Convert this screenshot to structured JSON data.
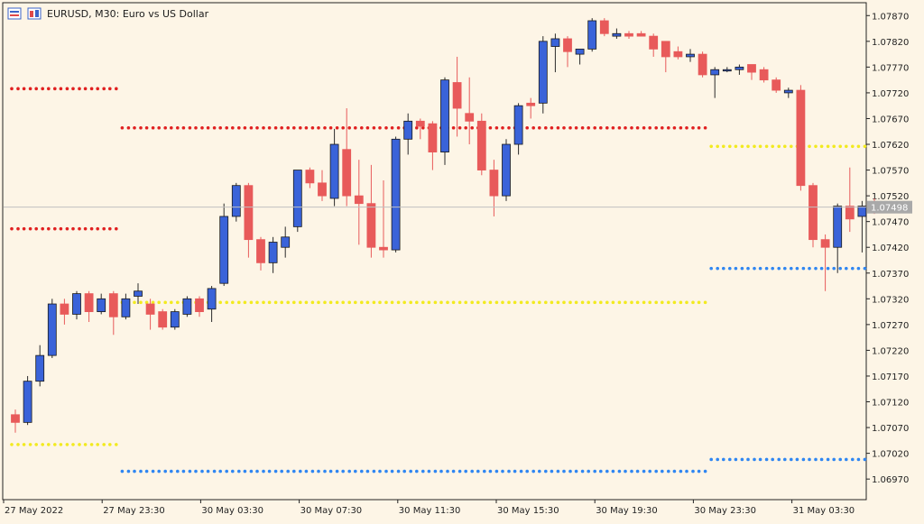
{
  "window": {
    "title": "EURUSD, M30:  Euro vs US Dollar",
    "icons": [
      "chart-window-icon",
      "chart-properties-icon"
    ]
  },
  "colors": {
    "background": "#fdf5e6",
    "bull": "#3a63d9",
    "bear": "#e85a5a",
    "wick": "#2a2a2a",
    "level_red": "#e02020",
    "level_yellow": "#f2ea1f",
    "level_blue": "#2f86f2",
    "current_price_line": "#c0c0c0",
    "current_price_box": "#a9a9a9"
  },
  "chart_data": {
    "type": "candlestick",
    "symbol": "EURUSD",
    "timeframe": "M30",
    "ylim": [
      1.0693,
      1.07895
    ],
    "yticks": [
      "1.07870",
      "1.07820",
      "1.07770",
      "1.07720",
      "1.07670",
      "1.07620",
      "1.07570",
      "1.07520",
      "1.07470",
      "1.07420",
      "1.07370",
      "1.07320",
      "1.07270",
      "1.07220",
      "1.07170",
      "1.07120",
      "1.07070",
      "1.07020",
      "1.06970"
    ],
    "xticks": [
      "27 May 2022",
      "27 May 23:30",
      "30 May 03:30",
      "30 May 07:30",
      "30 May 11:30",
      "30 May 15:30",
      "30 May 19:30",
      "30 May 23:30",
      "31 May 03:30"
    ],
    "current_price": "1.07498",
    "candles": [
      {
        "o": 1.07095,
        "h": 1.07105,
        "l": 1.0706,
        "c": 1.0708
      },
      {
        "o": 1.0708,
        "h": 1.0717,
        "l": 1.07075,
        "c": 1.0716
      },
      {
        "o": 1.0716,
        "h": 1.0723,
        "l": 1.0715,
        "c": 1.0721
      },
      {
        "o": 1.0721,
        "h": 1.0732,
        "l": 1.07205,
        "c": 1.0731
      },
      {
        "o": 1.0731,
        "h": 1.0732,
        "l": 1.0727,
        "c": 1.0729
      },
      {
        "o": 1.0729,
        "h": 1.07335,
        "l": 1.0728,
        "c": 1.0733
      },
      {
        "o": 1.0733,
        "h": 1.07335,
        "l": 1.07275,
        "c": 1.07295
      },
      {
        "o": 1.07295,
        "h": 1.0733,
        "l": 1.0729,
        "c": 1.0732
      },
      {
        "o": 1.0733,
        "h": 1.07335,
        "l": 1.0725,
        "c": 1.07285
      },
      {
        "o": 1.07285,
        "h": 1.0733,
        "l": 1.0728,
        "c": 1.0732
      },
      {
        "o": 1.07325,
        "h": 1.0735,
        "l": 1.0731,
        "c": 1.07335
      },
      {
        "o": 1.0731,
        "h": 1.0732,
        "l": 1.0726,
        "c": 1.0729
      },
      {
        "o": 1.07295,
        "h": 1.073,
        "l": 1.0726,
        "c": 1.07265
      },
      {
        "o": 1.07265,
        "h": 1.073,
        "l": 1.0726,
        "c": 1.07295
      },
      {
        "o": 1.0729,
        "h": 1.07325,
        "l": 1.07285,
        "c": 1.0732
      },
      {
        "o": 1.0732,
        "h": 1.07325,
        "l": 1.07285,
        "c": 1.07295
      },
      {
        "o": 1.073,
        "h": 1.07345,
        "l": 1.07275,
        "c": 1.0734
      },
      {
        "o": 1.0735,
        "h": 1.07505,
        "l": 1.07345,
        "c": 1.0748
      },
      {
        "o": 1.0748,
        "h": 1.07545,
        "l": 1.0747,
        "c": 1.0754
      },
      {
        "o": 1.0754,
        "h": 1.07545,
        "l": 1.074,
        "c": 1.07435
      },
      {
        "o": 1.07435,
        "h": 1.0744,
        "l": 1.07375,
        "c": 1.0739
      },
      {
        "o": 1.0739,
        "h": 1.0744,
        "l": 1.0737,
        "c": 1.0743
      },
      {
        "o": 1.0742,
        "h": 1.0746,
        "l": 1.074,
        "c": 1.0744
      },
      {
        "o": 1.0746,
        "h": 1.0757,
        "l": 1.0745,
        "c": 1.0757
      },
      {
        "o": 1.0757,
        "h": 1.07575,
        "l": 1.07535,
        "c": 1.07545
      },
      {
        "o": 1.07545,
        "h": 1.0757,
        "l": 1.0751,
        "c": 1.0752
      },
      {
        "o": 1.07515,
        "h": 1.0765,
        "l": 1.075,
        "c": 1.0762
      },
      {
        "o": 1.0761,
        "h": 1.0769,
        "l": 1.075,
        "c": 1.0752
      },
      {
        "o": 1.0752,
        "h": 1.0759,
        "l": 1.07425,
        "c": 1.07505
      },
      {
        "o": 1.07505,
        "h": 1.0758,
        "l": 1.074,
        "c": 1.0742
      },
      {
        "o": 1.0742,
        "h": 1.0755,
        "l": 1.074,
        "c": 1.07415
      },
      {
        "o": 1.07415,
        "h": 1.07635,
        "l": 1.0741,
        "c": 1.0763
      },
      {
        "o": 1.0763,
        "h": 1.0768,
        "l": 1.076,
        "c": 1.07665
      },
      {
        "o": 1.07665,
        "h": 1.0767,
        "l": 1.0763,
        "c": 1.07655
      },
      {
        "o": 1.0766,
        "h": 1.07665,
        "l": 1.0757,
        "c": 1.07605
      },
      {
        "o": 1.07605,
        "h": 1.0775,
        "l": 1.0758,
        "c": 1.07745
      },
      {
        "o": 1.0774,
        "h": 1.0779,
        "l": 1.07635,
        "c": 1.0769
      },
      {
        "o": 1.0768,
        "h": 1.0775,
        "l": 1.0762,
        "c": 1.07665
      },
      {
        "o": 1.07665,
        "h": 1.0768,
        "l": 1.0756,
        "c": 1.0757
      },
      {
        "o": 1.0757,
        "h": 1.0759,
        "l": 1.0748,
        "c": 1.0752
      },
      {
        "o": 1.0752,
        "h": 1.0763,
        "l": 1.0751,
        "c": 1.0762
      },
      {
        "o": 1.0762,
        "h": 1.077,
        "l": 1.076,
        "c": 1.07695
      },
      {
        "o": 1.077,
        "h": 1.0771,
        "l": 1.0767,
        "c": 1.07695
      },
      {
        "o": 1.077,
        "h": 1.0783,
        "l": 1.0768,
        "c": 1.0782
      },
      {
        "o": 1.0781,
        "h": 1.07835,
        "l": 1.0776,
        "c": 1.07825
      },
      {
        "o": 1.07825,
        "h": 1.0783,
        "l": 1.0777,
        "c": 1.078
      },
      {
        "o": 1.07795,
        "h": 1.07805,
        "l": 1.07775,
        "c": 1.07805
      },
      {
        "o": 1.07805,
        "h": 1.07865,
        "l": 1.078,
        "c": 1.0786
      },
      {
        "o": 1.0786,
        "h": 1.07865,
        "l": 1.0783,
        "c": 1.07835
      },
      {
        "o": 1.0783,
        "h": 1.07845,
        "l": 1.07825,
        "c": 1.07835
      },
      {
        "o": 1.07835,
        "h": 1.0784,
        "l": 1.07825,
        "c": 1.0783
      },
      {
        "o": 1.07835,
        "h": 1.0784,
        "l": 1.0783,
        "c": 1.0783
      },
      {
        "o": 1.0783,
        "h": 1.07835,
        "l": 1.0779,
        "c": 1.07805
      },
      {
        "o": 1.0782,
        "h": 1.0782,
        "l": 1.0776,
        "c": 1.0779
      },
      {
        "o": 1.078,
        "h": 1.0781,
        "l": 1.07785,
        "c": 1.0779
      },
      {
        "o": 1.0779,
        "h": 1.07805,
        "l": 1.0778,
        "c": 1.07795
      },
      {
        "o": 1.07795,
        "h": 1.078,
        "l": 1.0775,
        "c": 1.07755
      },
      {
        "o": 1.07755,
        "h": 1.0777,
        "l": 1.0771,
        "c": 1.07765
      },
      {
        "o": 1.07765,
        "h": 1.0777,
        "l": 1.0776,
        "c": 1.07765
      },
      {
        "o": 1.07765,
        "h": 1.07775,
        "l": 1.07755,
        "c": 1.0777
      },
      {
        "o": 1.07775,
        "h": 1.07775,
        "l": 1.07745,
        "c": 1.0776
      },
      {
        "o": 1.07765,
        "h": 1.0777,
        "l": 1.0774,
        "c": 1.07745
      },
      {
        "o": 1.07745,
        "h": 1.0775,
        "l": 1.0772,
        "c": 1.07725
      },
      {
        "o": 1.0772,
        "h": 1.0773,
        "l": 1.0771,
        "c": 1.07725
      },
      {
        "o": 1.07725,
        "h": 1.07735,
        "l": 1.0753,
        "c": 1.0754
      },
      {
        "o": 1.0754,
        "h": 1.07545,
        "l": 1.0742,
        "c": 1.07435
      },
      {
        "o": 1.07435,
        "h": 1.07445,
        "l": 1.07335,
        "c": 1.0742
      },
      {
        "o": 1.0742,
        "h": 1.07505,
        "l": 1.0737,
        "c": 1.075
      },
      {
        "o": 1.075,
        "h": 1.07575,
        "l": 1.0745,
        "c": 1.07475
      },
      {
        "o": 1.0748,
        "h": 1.0751,
        "l": 1.0741,
        "c": 1.075
      },
      {
        "o": 1.07505,
        "h": 1.07515,
        "l": 1.07485,
        "c": 1.07498
      }
    ],
    "levels": [
      {
        "color": "red",
        "price": 1.07728,
        "from_index": 0,
        "to_index": 8
      },
      {
        "color": "red",
        "price": 1.07652,
        "from_index": 9,
        "to_index": 56
      },
      {
        "color": "red",
        "price": 1.07456,
        "from_index": 0,
        "to_index": 8
      },
      {
        "color": "yellow",
        "price": 1.07313,
        "from_index": 9,
        "to_index": 56
      },
      {
        "color": "yellow",
        "price": 1.07037,
        "from_index": 0,
        "to_index": 8
      },
      {
        "color": "yellow",
        "price": 1.07616,
        "from_index": 57,
        "to_index": 69
      },
      {
        "color": "blue",
        "price": 1.06985,
        "from_index": 9,
        "to_index": 56
      },
      {
        "color": "blue",
        "price": 1.07379,
        "from_index": 57,
        "to_index": 69
      },
      {
        "color": "blue",
        "price": 1.07008,
        "from_index": 57,
        "to_index": 69
      }
    ]
  }
}
